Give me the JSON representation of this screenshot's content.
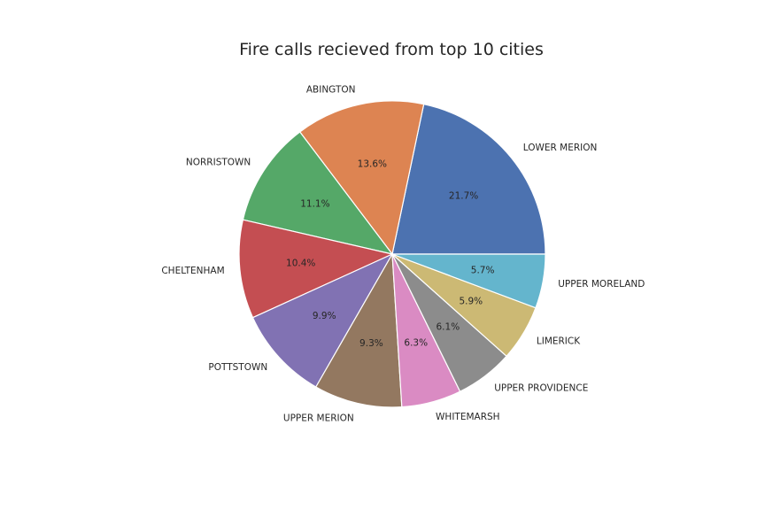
{
  "chart_data": {
    "type": "pie",
    "title": "Fire calls recieved from top 10 cities",
    "start_angle_deg": 0,
    "direction": "counterclockwise",
    "slices": [
      {
        "label": "LOWER MERION",
        "value": 21.7,
        "pct_label": "21.7%",
        "color": "#4c72b0"
      },
      {
        "label": "ABINGTON",
        "value": 13.6,
        "pct_label": "13.6%",
        "color": "#dd8452"
      },
      {
        "label": "NORRISTOWN",
        "value": 11.1,
        "pct_label": "11.1%",
        "color": "#55a868"
      },
      {
        "label": "CHELTENHAM",
        "value": 10.4,
        "pct_label": "10.4%",
        "color": "#c44e52"
      },
      {
        "label": "POTTSTOWN",
        "value": 9.9,
        "pct_label": "9.9%",
        "color": "#8172b3"
      },
      {
        "label": "UPPER MERION",
        "value": 9.3,
        "pct_label": "9.3%",
        "color": "#937860"
      },
      {
        "label": "WHITEMARSH",
        "value": 6.3,
        "pct_label": "6.3%",
        "color": "#da8bc3"
      },
      {
        "label": "UPPER PROVIDENCE",
        "value": 6.1,
        "pct_label": "6.1%",
        "color": "#8c8c8c"
      },
      {
        "label": "LIMERICK",
        "value": 5.9,
        "pct_label": "5.9%",
        "color": "#ccb974"
      },
      {
        "label": "UPPER MORELAND",
        "value": 5.7,
        "pct_label": "5.7%",
        "color": "#64b5cd"
      }
    ]
  }
}
